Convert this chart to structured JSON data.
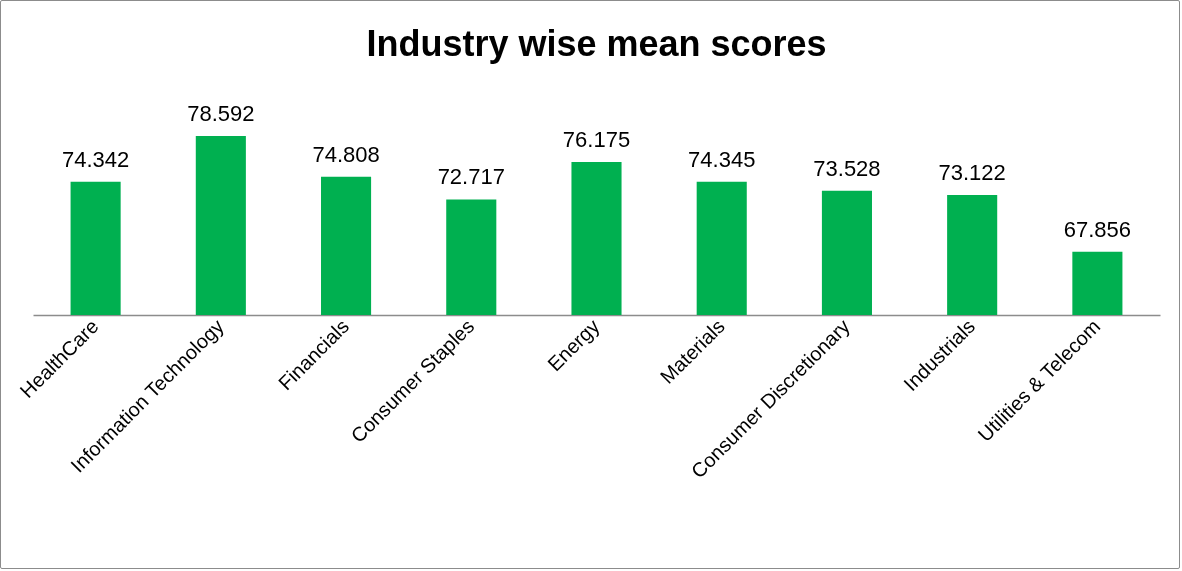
{
  "chart_data": {
    "type": "bar",
    "title": "Industry wise mean scores",
    "categories": [
      "HealthCare",
      "Information Technology",
      "Financials",
      "Consumer Staples",
      "Energy",
      "Materials",
      "Consumer Discretionary",
      "Industrials",
      "Utilities & Telecom"
    ],
    "values": [
      74.342,
      78.592,
      74.808,
      72.717,
      76.175,
      74.345,
      73.528,
      73.122,
      67.856
    ],
    "color": "#00b050",
    "ylim": [
      62,
      78.592
    ],
    "data_labels": true,
    "tick_labels": "x",
    "grid": false
  }
}
